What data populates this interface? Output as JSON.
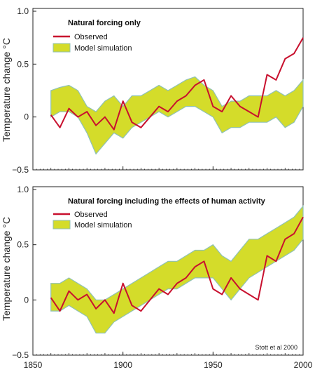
{
  "chart_data": [
    {
      "type": "area",
      "title": "Natural forcing only",
      "ylabel": "Temperature change °C",
      "xlim": [
        1860,
        2000
      ],
      "ylim": [
        -0.5,
        1.0
      ],
      "yticks": [
        -0.5,
        0,
        0.5,
        1.0
      ],
      "ytick_labels": [
        "−0.5",
        "0",
        "0.5",
        "1.0"
      ],
      "xticks": [
        1850,
        1900,
        1950,
        2000
      ],
      "xtick_labels": [],
      "legend": [
        "Observed",
        "Model simulation"
      ],
      "x": [
        1860,
        1865,
        1870,
        1875,
        1880,
        1885,
        1890,
        1895,
        1900,
        1905,
        1910,
        1915,
        1920,
        1925,
        1930,
        1935,
        1940,
        1945,
        1950,
        1955,
        1960,
        1965,
        1970,
        1975,
        1980,
        1985,
        1990,
        1995,
        2000
      ],
      "series": [
        {
          "name": "Observed",
          "kind": "line",
          "color": "#c8102e",
          "values": [
            0.02,
            -0.1,
            0.08,
            0.0,
            0.05,
            -0.08,
            0.0,
            -0.12,
            0.15,
            -0.05,
            -0.1,
            0.0,
            0.1,
            0.05,
            0.15,
            0.2,
            0.3,
            0.35,
            0.1,
            0.05,
            0.2,
            0.1,
            0.05,
            0.0,
            0.4,
            0.35,
            0.55,
            0.6,
            0.75
          ]
        },
        {
          "name": "Model simulation",
          "kind": "band",
          "color": "#d4dc2a",
          "edge": "#8fc1b4",
          "upper": [
            0.25,
            0.28,
            0.3,
            0.25,
            0.1,
            0.05,
            0.15,
            0.2,
            0.1,
            0.2,
            0.2,
            0.25,
            0.3,
            0.25,
            0.3,
            0.35,
            0.38,
            0.3,
            0.25,
            0.1,
            0.15,
            0.15,
            0.2,
            0.2,
            0.2,
            0.25,
            0.2,
            0.25,
            0.35
          ],
          "lower": [
            0.0,
            0.05,
            0.05,
            0.0,
            -0.15,
            -0.35,
            -0.25,
            -0.15,
            -0.2,
            -0.1,
            -0.05,
            0.0,
            0.05,
            0.0,
            0.05,
            0.1,
            0.1,
            0.05,
            0.0,
            -0.15,
            -0.1,
            -0.1,
            -0.05,
            -0.05,
            -0.05,
            0.0,
            -0.1,
            -0.05,
            0.1
          ]
        }
      ]
    },
    {
      "type": "area",
      "title": "Natural forcing including the effects of human activity",
      "ylabel": "Temperature change °C",
      "xlim": [
        1860,
        2000
      ],
      "ylim": [
        -0.5,
        1.0
      ],
      "yticks": [
        -0.5,
        0,
        0.5,
        1.0
      ],
      "ytick_labels": [
        "−0.5",
        "0",
        "0.5",
        "1.0"
      ],
      "xticks": [
        1850,
        1900,
        1950,
        2000
      ],
      "xtick_labels": [
        "1850",
        "1900",
        "1950",
        "2000"
      ],
      "legend": [
        "Observed",
        "Model simulation"
      ],
      "x": [
        1860,
        1865,
        1870,
        1875,
        1880,
        1885,
        1890,
        1895,
        1900,
        1905,
        1910,
        1915,
        1920,
        1925,
        1930,
        1935,
        1940,
        1945,
        1950,
        1955,
        1960,
        1965,
        1970,
        1975,
        1980,
        1985,
        1990,
        1995,
        2000
      ],
      "series": [
        {
          "name": "Observed",
          "kind": "line",
          "color": "#c8102e",
          "values": [
            0.02,
            -0.1,
            0.08,
            0.0,
            0.05,
            -0.08,
            0.0,
            -0.12,
            0.15,
            -0.05,
            -0.1,
            0.0,
            0.1,
            0.05,
            0.15,
            0.2,
            0.3,
            0.35,
            0.1,
            0.05,
            0.2,
            0.1,
            0.05,
            0.0,
            0.4,
            0.35,
            0.55,
            0.6,
            0.75
          ]
        },
        {
          "name": "Model simulation",
          "kind": "band",
          "color": "#d4dc2a",
          "edge": "#8fc1b4",
          "upper": [
            0.15,
            0.15,
            0.2,
            0.15,
            0.1,
            0.0,
            0.0,
            0.05,
            0.1,
            0.15,
            0.2,
            0.25,
            0.3,
            0.35,
            0.35,
            0.4,
            0.45,
            0.45,
            0.5,
            0.4,
            0.35,
            0.45,
            0.55,
            0.55,
            0.6,
            0.65,
            0.7,
            0.75,
            0.85
          ],
          "lower": [
            -0.1,
            -0.1,
            -0.05,
            -0.1,
            -0.15,
            -0.3,
            -0.3,
            -0.2,
            -0.15,
            -0.1,
            -0.05,
            0.0,
            0.05,
            0.1,
            0.1,
            0.15,
            0.2,
            0.2,
            0.2,
            0.1,
            0.0,
            0.1,
            0.2,
            0.25,
            0.3,
            0.35,
            0.4,
            0.45,
            0.55
          ]
        }
      ]
    }
  ],
  "credit": "Stott et al 2000"
}
